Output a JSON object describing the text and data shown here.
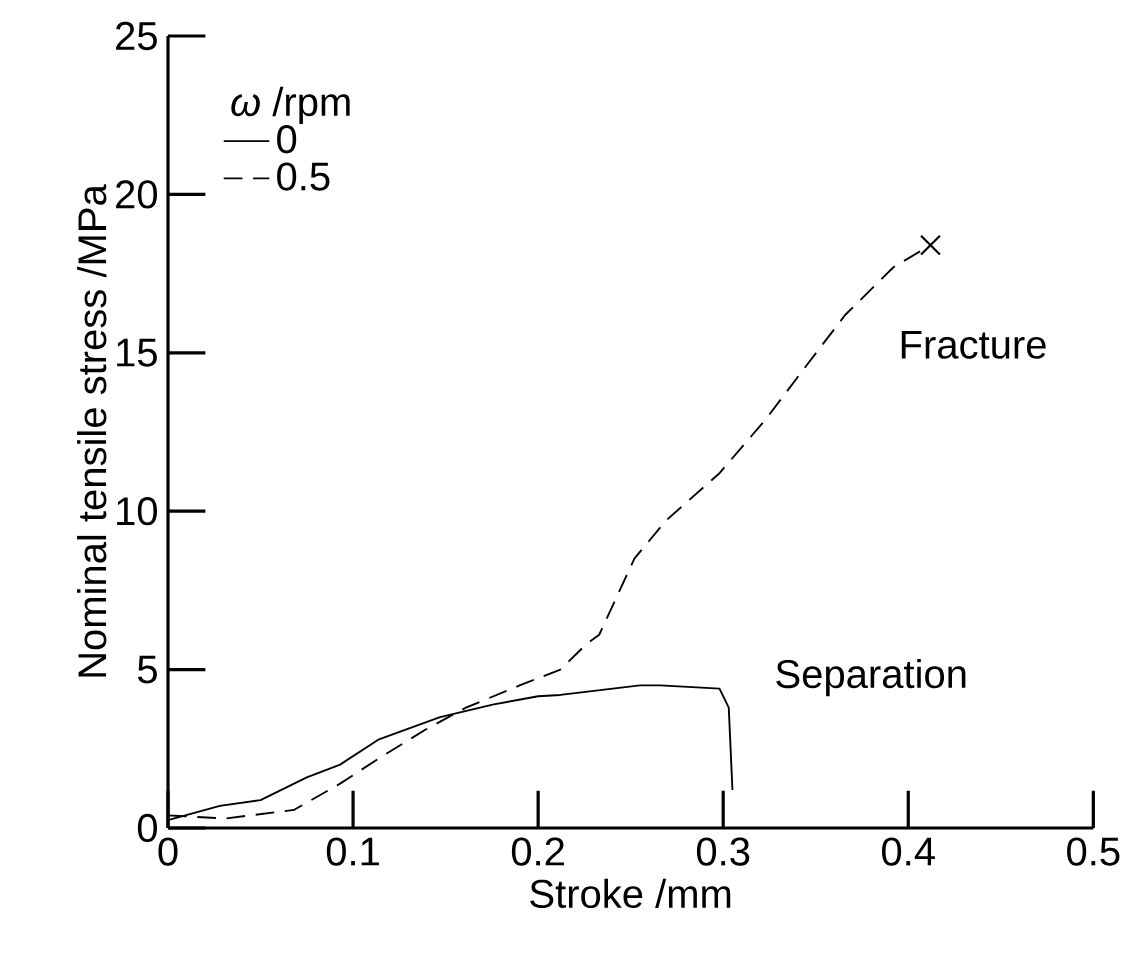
{
  "chart_data": {
    "type": "line",
    "xlabel": "Stroke /mm",
    "ylabel": "Nominal tensile stress /MPa",
    "legend_title": "*ω* /rpm",
    "legend": "top left",
    "xlim": [
      0,
      0.5
    ],
    "ylim": [
      0,
      25
    ],
    "xticks": [
      0,
      0.1,
      0.2,
      0.3,
      0.4,
      0.5
    ],
    "yticks": [
      0,
      5,
      10,
      15,
      20,
      25
    ],
    "grid": false,
    "series": [
      {
        "name": "0",
        "color": "#000000",
        "line_style": "solid",
        "x": [
          0,
          0.028,
          0.05,
          0.075,
          0.093,
          0.114,
          0.147,
          0.176,
          0.2,
          0.212,
          0.255,
          0.266,
          0.298,
          0.303,
          0.305
        ],
        "values": [
          0.25,
          0.7,
          0.88,
          1.6,
          2.0,
          2.8,
          3.5,
          3.9,
          4.16,
          4.2,
          4.5,
          4.5,
          4.4,
          3.8,
          1.2
        ]
      },
      {
        "name": "0.5",
        "color": "#000000",
        "line_style": "dashed",
        "x": [
          0,
          0.006,
          0.031,
          0.068,
          0.093,
          0.114,
          0.139,
          0.161,
          0.19,
          0.212,
          0.226,
          0.233,
          0.252,
          0.269,
          0.298,
          0.323,
          0.345,
          0.366,
          0.392,
          0.412
        ],
        "values": [
          0.4,
          0.38,
          0.3,
          0.57,
          1.4,
          2.2,
          3.1,
          3.8,
          4.5,
          5.0,
          5.8,
          6.1,
          8.5,
          9.7,
          11.2,
          12.9,
          14.6,
          16.2,
          17.7,
          18.4
        ]
      },
      {
        "type": "scatter",
        "marker": "cross",
        "color": "#000000",
        "x": [
          0.412
        ],
        "values": [
          18.4
        ]
      }
    ],
    "annotations": [
      "Fracture",
      "Separation"
    ]
  }
}
